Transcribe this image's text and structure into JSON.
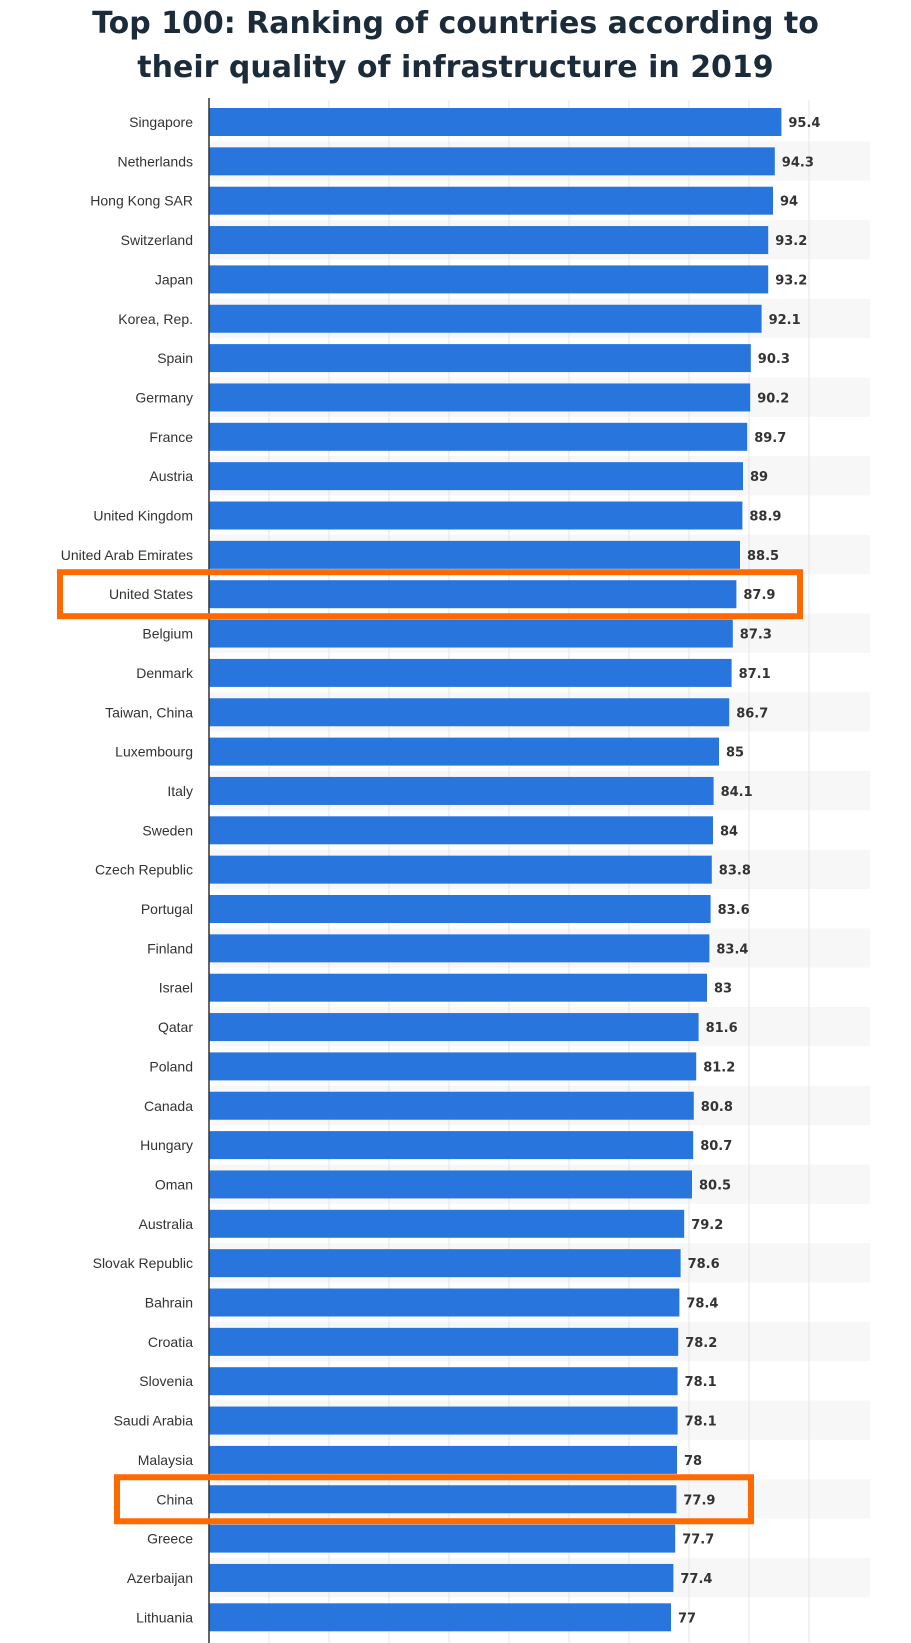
{
  "chart_data": {
    "type": "bar",
    "orientation": "horizontal",
    "title": "Top 100: Ranking of countries according to their quality of infrastructure in 2019",
    "title_lines": [
      "Top 100: Ranking of countries according to",
      "their quality of infrastructure in 2019"
    ],
    "categories": [
      "Singapore",
      "Netherlands",
      "Hong Kong SAR",
      "Switzerland",
      "Japan",
      "Korea, Rep.",
      "Spain",
      "Germany",
      "France",
      "Austria",
      "United Kingdom",
      "United Arab Emirates",
      "United States",
      "Belgium",
      "Denmark",
      "Taiwan, China",
      "Luxembourg",
      "Italy",
      "Sweden",
      "Czech Republic",
      "Portugal",
      "Finland",
      "Israel",
      "Qatar",
      "Poland",
      "Canada",
      "Hungary",
      "Oman",
      "Australia",
      "Slovak Republic",
      "Bahrain",
      "Croatia",
      "Slovenia",
      "Saudi Arabia",
      "Malaysia",
      "China",
      "Greece",
      "Azerbaijan",
      "Lithuania"
    ],
    "values": [
      95.4,
      94.3,
      94,
      93.2,
      93.2,
      92.1,
      90.3,
      90.2,
      89.7,
      89,
      88.9,
      88.5,
      87.9,
      87.3,
      87.1,
      86.7,
      85,
      84.1,
      84,
      83.8,
      83.6,
      83.4,
      83,
      81.6,
      81.2,
      80.8,
      80.7,
      80.5,
      79.2,
      78.6,
      78.4,
      78.2,
      78.1,
      78.1,
      78,
      77.9,
      77.7,
      77.4,
      77
    ],
    "value_labels": [
      "95.4",
      "94.3",
      "94",
      "93.2",
      "93.2",
      "92.1",
      "90.3",
      "90.2",
      "89.7",
      "89",
      "88.9",
      "88.5",
      "87.9",
      "87.3",
      "87.1",
      "86.7",
      "85",
      "84.1",
      "84",
      "83.8",
      "83.6",
      "83.4",
      "83",
      "81.6",
      "81.2",
      "80.8",
      "80.7",
      "80.5",
      "79.2",
      "78.6",
      "78.4",
      "78.2",
      "78.1",
      "78.1",
      "78",
      "77.9",
      "77.7",
      "77.4",
      "77"
    ],
    "highlighted": [
      "United States",
      "China"
    ],
    "xlim": [
      0,
      100
    ],
    "grid": true,
    "xlabel": "",
    "ylabel": ""
  },
  "colors": {
    "bar": "#2876dd",
    "highlight": "#ff6a00",
    "grid": "#e6e6e6",
    "axis": "#333333",
    "stripe": "#f7f7f7"
  }
}
